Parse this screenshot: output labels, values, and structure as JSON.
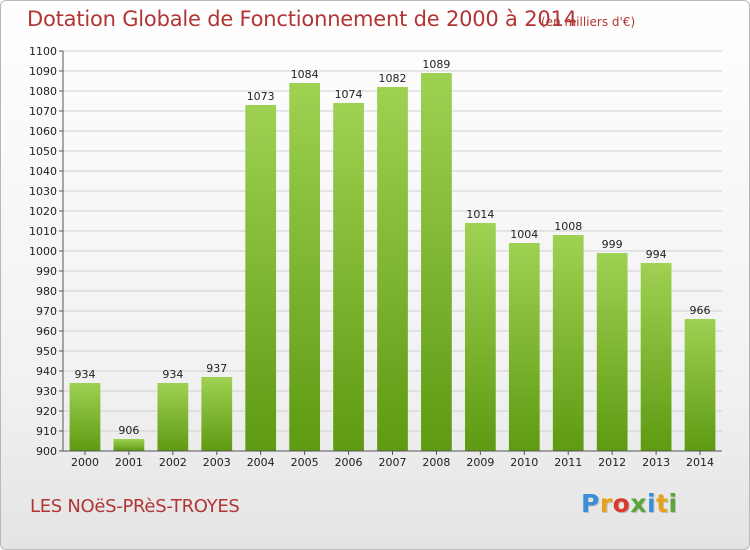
{
  "header": {
    "title": "Dotation Globale de Fonctionnement de 2000 à 2014",
    "subtitle": "(en milliers d'€)"
  },
  "footer": {
    "place": "LES NOëS-PRèS-TROYES",
    "logo_letters": [
      {
        "char": "P",
        "color": "#3a8fd6"
      },
      {
        "char": "r",
        "color": "#e8a21a"
      },
      {
        "char": "o",
        "color": "#d93a2b"
      },
      {
        "char": "x",
        "color": "#5aa63a"
      },
      {
        "char": "i",
        "color": "#3a8fd6"
      },
      {
        "char": "t",
        "color": "#e8a21a"
      },
      {
        "char": "i",
        "color": "#5aa63a"
      }
    ]
  },
  "chart_data": {
    "type": "bar",
    "categories": [
      "2000",
      "2001",
      "2002",
      "2003",
      "2004",
      "2005",
      "2006",
      "2007",
      "2008",
      "2009",
      "2010",
      "2011",
      "2012",
      "2013",
      "2014"
    ],
    "values": [
      934,
      906,
      934,
      937,
      1073,
      1084,
      1074,
      1082,
      1089,
      1014,
      1004,
      1008,
      999,
      994,
      966
    ],
    "title": "Dotation Globale de Fonctionnement de 2000 à 2014",
    "subtitle": "(en milliers d'€)",
    "ylim": [
      900,
      1100
    ],
    "yticks": [
      900,
      910,
      920,
      930,
      940,
      950,
      960,
      970,
      980,
      990,
      1000,
      1010,
      1020,
      1030,
      1040,
      1050,
      1060,
      1070,
      1080,
      1090,
      1100
    ],
    "grid": true,
    "data_labels": true,
    "bar_color_top": "#9fd152",
    "bar_color_bottom": "#5e9a12"
  }
}
